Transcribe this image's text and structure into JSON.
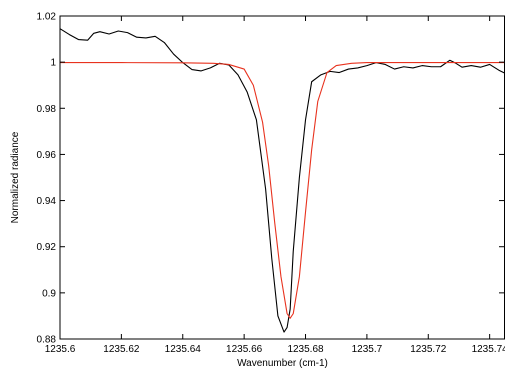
{
  "chart_data": {
    "type": "line",
    "title": "",
    "xlabel": "Wavenumber (cm-1)",
    "ylabel": "Normalized radiance",
    "xlim": [
      1235.6,
      1235.745
    ],
    "ylim": [
      0.88,
      1.02
    ],
    "grid": false,
    "x_ticks": [
      1235.6,
      1235.62,
      1235.64,
      1235.66,
      1235.68,
      1235.7,
      1235.72,
      1235.74
    ],
    "x_tick_labels": [
      "1235.6",
      "1235.62",
      "1235.64",
      "1235.66",
      "1235.68",
      "1235.7",
      "1235.72",
      "1235.74"
    ],
    "y_ticks": [
      0.88,
      0.9,
      0.92,
      0.94,
      0.96,
      0.98,
      1.0,
      1.02
    ],
    "y_tick_labels": [
      "0.88",
      "0.9",
      "0.92",
      "0.94",
      "0.96",
      "0.98",
      "1",
      "1.02"
    ],
    "series": [
      {
        "color": "#000000",
        "x": [
          1235.6,
          1235.603,
          1235.606,
          1235.609,
          1235.611,
          1235.613,
          1235.616,
          1235.619,
          1235.622,
          1235.625,
          1235.628,
          1235.631,
          1235.634,
          1235.637,
          1235.64,
          1235.643,
          1235.646,
          1235.649,
          1235.652,
          1235.655,
          1235.658,
          1235.661,
          1235.664,
          1235.667,
          1235.669,
          1235.671,
          1235.673,
          1235.674,
          1235.675,
          1235.676,
          1235.678,
          1235.68,
          1235.682,
          1235.685,
          1235.688,
          1235.691,
          1235.694,
          1235.697,
          1235.7,
          1235.703,
          1235.706,
          1235.709,
          1235.712,
          1235.715,
          1235.718,
          1235.721,
          1235.724,
          1235.727,
          1235.729,
          1235.731,
          1235.734,
          1235.737,
          1235.74,
          1235.743,
          1235.745
        ],
        "values": [
          1.0145,
          1.012,
          1.0098,
          1.0095,
          1.0125,
          1.0132,
          1.0122,
          1.0135,
          1.0128,
          1.0108,
          1.0105,
          1.0112,
          1.0085,
          1.0035,
          0.9998,
          0.9968,
          0.9962,
          0.9975,
          0.9995,
          0.9988,
          0.9945,
          0.987,
          0.975,
          0.945,
          0.915,
          0.89,
          0.883,
          0.885,
          0.893,
          0.918,
          0.95,
          0.975,
          0.9915,
          0.9945,
          0.996,
          0.9955,
          0.997,
          0.9975,
          0.9985,
          0.9998,
          0.999,
          0.997,
          0.998,
          0.9975,
          0.9985,
          0.998,
          0.998,
          1.0008,
          0.9995,
          0.9978,
          0.9985,
          0.9978,
          0.999,
          0.9965,
          0.9952
        ]
      },
      {
        "color": "#e8321e",
        "x": [
          1235.6,
          1235.62,
          1235.64,
          1235.65,
          1235.655,
          1235.66,
          1235.663,
          1235.666,
          1235.668,
          1235.67,
          1235.672,
          1235.674,
          1235.675,
          1235.676,
          1235.678,
          1235.68,
          1235.682,
          1235.684,
          1235.687,
          1235.69,
          1235.695,
          1235.7,
          1235.72,
          1235.745
        ],
        "values": [
          0.9998,
          0.9998,
          0.9997,
          0.9995,
          0.999,
          0.997,
          0.99,
          0.974,
          0.955,
          0.93,
          0.907,
          0.891,
          0.889,
          0.891,
          0.907,
          0.935,
          0.962,
          0.983,
          0.9955,
          0.9985,
          0.9995,
          0.9998,
          0.9998,
          0.9998
        ]
      }
    ]
  }
}
